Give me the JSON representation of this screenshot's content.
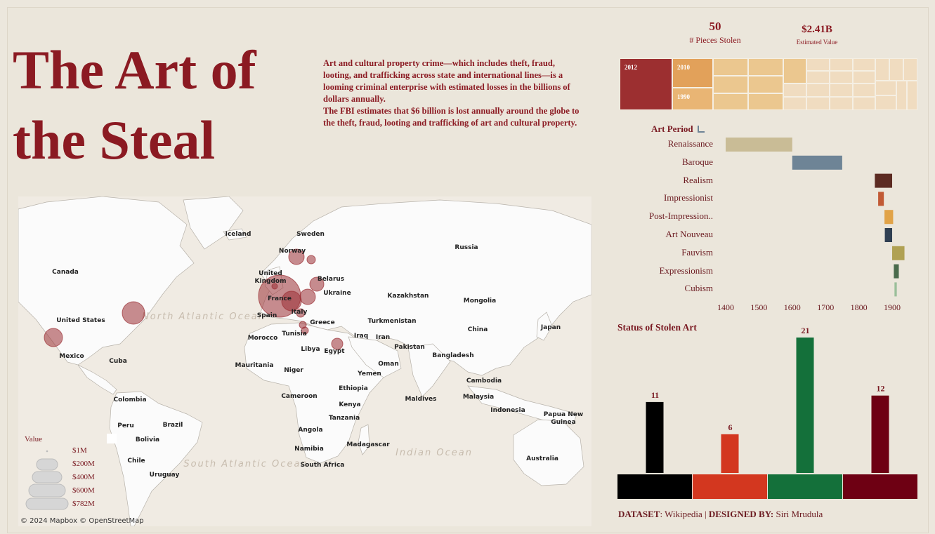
{
  "title_line1": "The Art of",
  "title_line2": "the Steal",
  "intro_p1": "Art and cultural property crime—which includes theft, fraud, looting, and trafficking across state and international lines—is a looming criminal enterprise with estimated losses in the billions of dollars annually.",
  "intro_p2": "The FBI estimates that $6 billion is lost annually around the globe to the theft, fraud, looting and trafficking of art and cultural property.",
  "kpis": {
    "pieces_value": "50",
    "pieces_label": "# Pieces Stolen",
    "value_value": "$2.41B",
    "value_label": "Estimated Value"
  },
  "treemap": {
    "labels": [
      "2012",
      "2010",
      "1990"
    ],
    "colors": [
      "#9c2f30",
      "#e2a15a",
      "#e9c58f",
      "#f0dcc0"
    ]
  },
  "map": {
    "attribution": "© 2024 Mapbox  © OpenStreetMap",
    "countries": [
      "Iceland",
      "Sweden",
      "Norway",
      "Russia",
      "Canada",
      "United Kingdom",
      "Belarus",
      "Ukraine",
      "France",
      "Kazakhstan",
      "Mongolia",
      "United States",
      "Spain",
      "Italy",
      "Greece",
      "Turkmenistan",
      "Tunisia",
      "Morocco",
      "Libya",
      "Iraq",
      "Iran",
      "Egypt",
      "Pakistan",
      "China",
      "Japan",
      "Mexico",
      "Cuba",
      "Mauritania",
      "Niger",
      "Oman",
      "Bangladesh",
      "Yemen",
      "Ethiopia",
      "Cambodia",
      "Colombia",
      "Cameroon",
      "Maldives",
      "Malaysia",
      "Kenya",
      "Tanzania",
      "Indonesia",
      "Papua New Guinea",
      "Peru",
      "Brazil",
      "Bolivia",
      "Angola",
      "Madagascar",
      "Chile",
      "Namibia",
      "South Africa",
      "Australia",
      "Uruguay"
    ],
    "oceans": [
      "North Atlantic Ocean",
      "South Atlantic Ocean",
      "Indian Ocean"
    ],
    "legend_title": "Value",
    "legend_items": [
      "$1M",
      "$200M",
      "$400M",
      "$600M",
      "$782M"
    ]
  },
  "chart_data": [
    {
      "type": "bar",
      "orientation": "horizontal-range",
      "title": "Art Period",
      "categories": [
        "Renaissance",
        "Baroque",
        "Realism",
        "Impressionist",
        "Post-Impression..",
        "Art Nouveau",
        "Fauvism",
        "Expressionism",
        "Cubism"
      ],
      "ranges": [
        [
          1400,
          1600
        ],
        [
          1600,
          1750
        ],
        [
          1848,
          1900
        ],
        [
          1858,
          1875
        ],
        [
          1877,
          1903
        ],
        [
          1878,
          1900
        ],
        [
          1900,
          1937
        ],
        [
          1905,
          1920
        ],
        [
          1907,
          1914
        ]
      ],
      "colors": [
        "#c9bc96",
        "#6e8496",
        "#5c2b22",
        "#c15a35",
        "#e1a348",
        "#2f3f52",
        "#b0a153",
        "#4a6b4c",
        "#9bbf9a"
      ],
      "xlim": [
        1400,
        1900
      ],
      "ticks": [
        1400,
        1500,
        1600,
        1700,
        1800,
        1900
      ]
    },
    {
      "type": "bar",
      "title": "Status of Stolen Art",
      "values": [
        11,
        6,
        21,
        12
      ],
      "colors": [
        "#000000",
        "#d3371f",
        "#14703a",
        "#6e0013"
      ],
      "ylim": [
        0,
        21
      ]
    }
  ],
  "credit": {
    "dataset_label": "DATASET",
    "dataset_value": ": Wikipedia",
    "separator": " | ",
    "designer_label": "DESIGNED BY:",
    "designer_value": " Siri Mrudula"
  }
}
